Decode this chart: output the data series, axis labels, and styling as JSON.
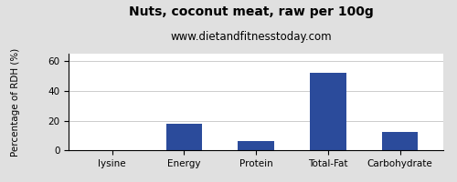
{
  "title": "Nuts, coconut meat, raw per 100g",
  "subtitle": "www.dietandfitnesstoday.com",
  "categories": [
    "lysine",
    "Energy",
    "Protein",
    "Total-Fat",
    "Carbohydrate"
  ],
  "values": [
    0,
    18,
    6.5,
    52,
    12.5
  ],
  "bar_color": "#2b4b9b",
  "ylabel": "Percentage of RDH (%)",
  "ylim": [
    0,
    65
  ],
  "yticks": [
    0,
    20,
    40,
    60
  ],
  "background_color": "#e0e0e0",
  "plot_bg_color": "#ffffff",
  "title_fontsize": 10,
  "subtitle_fontsize": 8.5,
  "ylabel_fontsize": 7.5,
  "tick_fontsize": 7.5
}
